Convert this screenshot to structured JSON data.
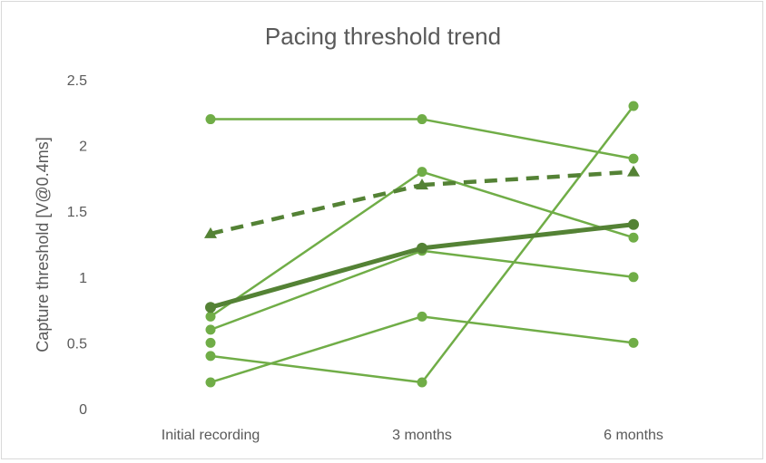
{
  "chart_data": {
    "type": "line",
    "title": "Pacing threshold trend",
    "xlabel": "",
    "ylabel": "Capture threshold [V@0.4ms]",
    "categories": [
      "Initial recording",
      "3 months",
      "6 months"
    ],
    "ylim": [
      0,
      2.5
    ],
    "yticks": [
      0,
      0.5,
      1,
      1.5,
      2,
      2.5
    ],
    "ytick_labels": [
      "0",
      "0.5",
      "1",
      "1.5",
      "2",
      "2.5"
    ],
    "grid": false,
    "legend": "none",
    "series": [
      {
        "values": [
          2.2,
          2.2,
          1.9
        ],
        "style": "thin",
        "marker": "circle",
        "color": "#70ad47"
      },
      {
        "values": [
          0.7,
          1.8,
          1.3
        ],
        "style": "thin",
        "marker": "circle",
        "color": "#70ad47"
      },
      {
        "values": [
          0.6,
          1.2,
          1.0
        ],
        "style": "thin",
        "marker": "circle",
        "color": "#70ad47"
      },
      {
        "values": [
          0.4,
          0.2,
          2.3
        ],
        "style": "thin",
        "marker": "circle",
        "color": "#70ad47"
      },
      {
        "values": [
          0.2,
          0.7,
          0.5
        ],
        "style": "thin",
        "marker": "circle",
        "color": "#70ad47"
      },
      {
        "values": [
          0.5,
          null,
          null
        ],
        "style": "thin",
        "marker": "circle",
        "color": "#70ad47"
      },
      {
        "values": [
          0.77,
          1.22,
          1.4
        ],
        "style": "thick",
        "marker": "circle",
        "color": "#548235"
      },
      {
        "values": [
          1.33,
          1.7,
          1.8
        ],
        "style": "dashed",
        "marker": "triangle",
        "color": "#548235"
      }
    ]
  }
}
